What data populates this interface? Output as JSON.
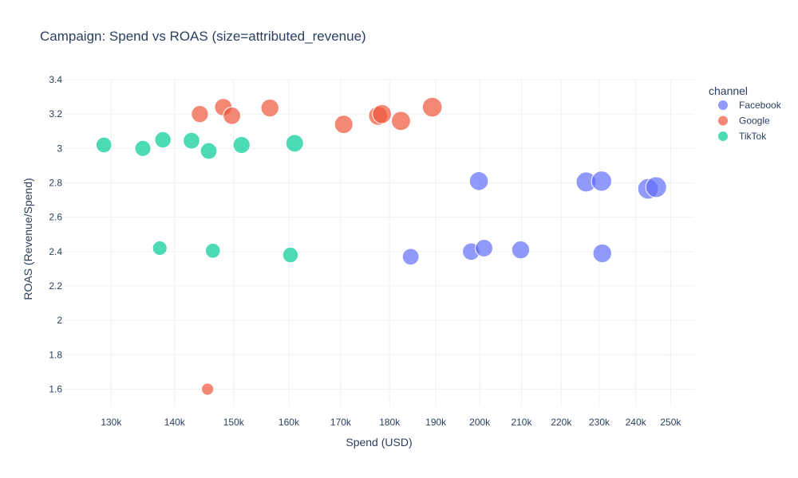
{
  "chart_data": {
    "type": "scatter",
    "title": "Campaign: Spend vs ROAS (size=attributed_revenue)",
    "xlabel": "Spend (USD)",
    "ylabel": "ROAS (Revenue/Spend)",
    "x_scale": "log",
    "xlim": [
      123000,
      257000
    ],
    "ylim": [
      1.5,
      3.4
    ],
    "x_ticks": [
      130000,
      140000,
      150000,
      160000,
      170000,
      180000,
      190000,
      200000,
      210000,
      220000,
      230000,
      240000,
      250000
    ],
    "x_tick_labels": [
      "130k",
      "140k",
      "150k",
      "160k",
      "170k",
      "180k",
      "190k",
      "200k",
      "210k",
      "220k",
      "230k",
      "240k",
      "250k"
    ],
    "y_ticks": [
      1.6,
      1.8,
      2,
      2.2,
      2.4,
      2.6,
      2.8,
      3,
      3.2,
      3.4
    ],
    "y_tick_labels": [
      "1.6",
      "1.8",
      "2",
      "2.2",
      "2.4",
      "2.6",
      "2.8",
      "3",
      "3.2",
      "3.4"
    ],
    "grid": true,
    "legend": {
      "title": "channel",
      "placement": "top-right"
    },
    "series": [
      {
        "name": "Facebook",
        "color": "#636efa",
        "points": [
          {
            "x": 184500,
            "y": 2.37,
            "size": 437000
          },
          {
            "x": 198000,
            "y": 2.4,
            "size": 475000
          },
          {
            "x": 199800,
            "y": 2.81,
            "size": 561000
          },
          {
            "x": 201000,
            "y": 2.42,
            "size": 486000
          },
          {
            "x": 209800,
            "y": 2.41,
            "size": 506000
          },
          {
            "x": 226500,
            "y": 2.805,
            "size": 635000
          },
          {
            "x": 230800,
            "y": 2.39,
            "size": 552000
          },
          {
            "x": 230600,
            "y": 2.81,
            "size": 648000
          },
          {
            "x": 243500,
            "y": 2.765,
            "size": 673000
          },
          {
            "x": 245800,
            "y": 2.775,
            "size": 682000
          }
        ]
      },
      {
        "name": "Google",
        "color": "#ef553b",
        "points": [
          {
            "x": 145500,
            "y": 1.6,
            "size": 233000
          },
          {
            "x": 144200,
            "y": 3.2,
            "size": 461000
          },
          {
            "x": 148200,
            "y": 3.24,
            "size": 480000
          },
          {
            "x": 149700,
            "y": 3.19,
            "size": 478000
          },
          {
            "x": 156500,
            "y": 3.235,
            "size": 506000
          },
          {
            "x": 170600,
            "y": 3.14,
            "size": 536000
          },
          {
            "x": 177600,
            "y": 3.19,
            "size": 566000
          },
          {
            "x": 178400,
            "y": 3.2,
            "size": 571000
          },
          {
            "x": 182400,
            "y": 3.16,
            "size": 576000
          },
          {
            "x": 189200,
            "y": 3.24,
            "size": 613000
          }
        ]
      },
      {
        "name": "TikTok",
        "color": "#00cc96",
        "points": [
          {
            "x": 128900,
            "y": 3.02,
            "size": 389000
          },
          {
            "x": 134900,
            "y": 3.0,
            "size": 405000
          },
          {
            "x": 137600,
            "y": 2.42,
            "size": 333000
          },
          {
            "x": 138100,
            "y": 3.05,
            "size": 421000
          },
          {
            "x": 142800,
            "y": 3.045,
            "size": 435000
          },
          {
            "x": 145700,
            "y": 2.985,
            "size": 435000
          },
          {
            "x": 146400,
            "y": 2.405,
            "size": 352000
          },
          {
            "x": 151400,
            "y": 3.02,
            "size": 457000
          },
          {
            "x": 160300,
            "y": 2.38,
            "size": 382000
          },
          {
            "x": 161100,
            "y": 3.03,
            "size": 488000
          }
        ]
      }
    ]
  }
}
